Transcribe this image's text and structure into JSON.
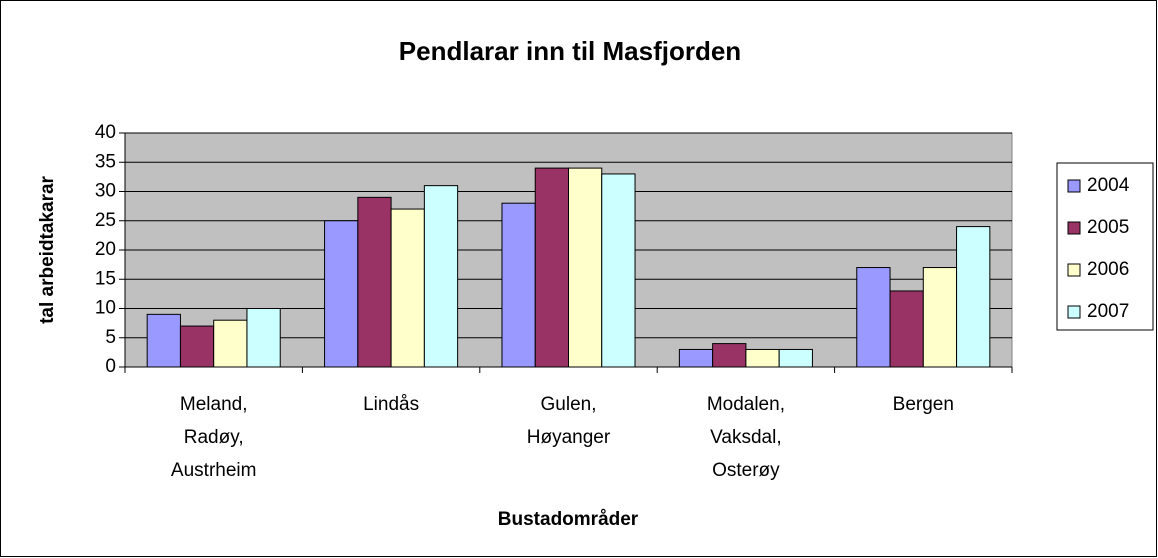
{
  "chart_data": {
    "type": "bar",
    "title": "Pendlarar inn til Masfjorden",
    "x_label": "Bustadområder",
    "y_label": "tal arbeidtakarar",
    "categories": [
      [
        "Meland,",
        "Radøy,",
        "Austrheim"
      ],
      [
        "Lindås"
      ],
      [
        "Gulen,",
        "Høyanger"
      ],
      [
        "Modalen,",
        "Vaksdal,",
        "Osterøy"
      ],
      [
        "Bergen"
      ]
    ],
    "series": [
      {
        "name": "2004",
        "color": "#9999ff",
        "values": [
          9,
          25,
          28,
          3,
          17
        ]
      },
      {
        "name": "2005",
        "color": "#993366",
        "values": [
          7,
          29,
          34,
          4,
          13
        ]
      },
      {
        "name": "2006",
        "color": "#ffffcc",
        "values": [
          8,
          27,
          34,
          3,
          17
        ]
      },
      {
        "name": "2007",
        "color": "#ccffff",
        "values": [
          10,
          31,
          33,
          3,
          24
        ]
      }
    ],
    "ylim": [
      0,
      40
    ],
    "yticks": [
      0,
      5,
      10,
      15,
      20,
      25,
      30,
      35,
      40
    ],
    "grid": true,
    "legend": "right",
    "plot_background": "#c0c0c0"
  }
}
